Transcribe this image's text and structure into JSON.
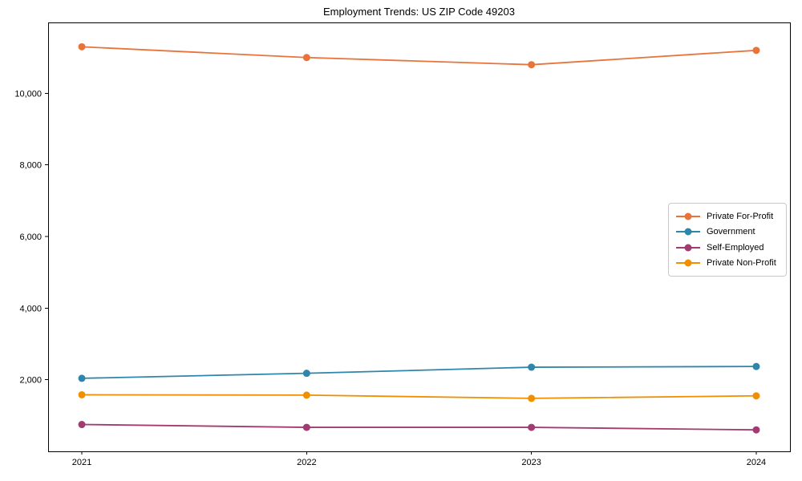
{
  "title": "Employment Trends: US ZIP Code 49203",
  "chart_data": {
    "type": "line",
    "title": "Employment Trends: US ZIP Code 49203",
    "categories": [
      "2021",
      "2022",
      "2023",
      "2024"
    ],
    "series": [
      {
        "name": "Private For-Profit",
        "color": "#E8743B",
        "values": [
          11300,
          11000,
          10800,
          11200
        ]
      },
      {
        "name": "Government",
        "color": "#2E86AB",
        "values": [
          2040,
          2180,
          2350,
          2370
        ]
      },
      {
        "name": "Self-Employed",
        "color": "#A23B72",
        "values": [
          750,
          670,
          670,
          600
        ]
      },
      {
        "name": "Private Non-Profit",
        "color": "#F18F01",
        "values": [
          1580,
          1570,
          1480,
          1550
        ]
      }
    ],
    "xlabel": "",
    "ylabel": "",
    "ylim": [
      0,
      11980
    ],
    "yticks": [
      2000,
      4000,
      6000,
      8000,
      10000
    ],
    "ytick_labels": [
      "2,000",
      "4,000",
      "6,000",
      "8,000",
      "10,000"
    ],
    "grid": false,
    "legend_position": "right-middle",
    "axis_color": "#000000"
  }
}
